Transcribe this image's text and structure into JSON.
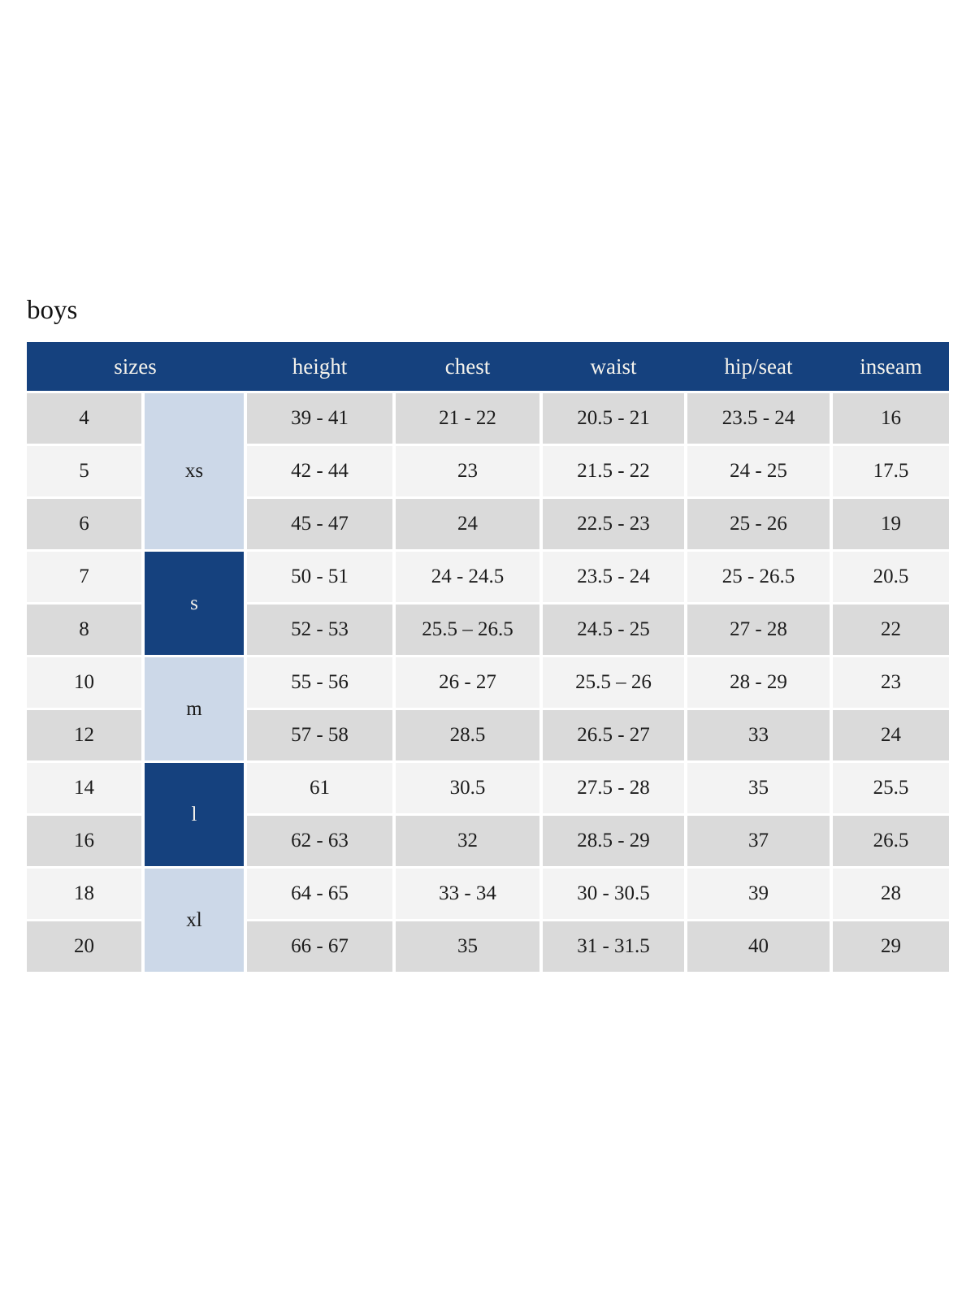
{
  "page": {
    "title": "boys"
  },
  "colors": {
    "header_bg": "#15417e",
    "header_text": "#f4f2ec",
    "group_light_bg": "#ccd8e8",
    "row_gray": "#dadada",
    "row_light": "#f3f3f3",
    "body_text": "#1c1c1c"
  },
  "chart_data": {
    "type": "table",
    "title": "boys",
    "headers": [
      "sizes",
      "height",
      "chest",
      "waist",
      "hip/seat",
      "inseam"
    ],
    "header_spans": [
      2,
      1,
      1,
      1,
      1,
      1
    ],
    "groups": [
      {
        "label": "xs",
        "span": 3,
        "variant": "light"
      },
      {
        "label": "s",
        "span": 2,
        "variant": "dark"
      },
      {
        "label": "m",
        "span": 2,
        "variant": "light"
      },
      {
        "label": "l",
        "span": 2,
        "variant": "dark"
      },
      {
        "label": "xl",
        "span": 2,
        "variant": "light"
      }
    ],
    "measure_keys": [
      "height",
      "chest",
      "waist",
      "hip_seat",
      "inseam"
    ],
    "rows": [
      {
        "size": "4",
        "height": "39 - 41",
        "chest": "21 - 22",
        "waist": "20.5 - 21",
        "hip_seat": "23.5 - 24",
        "inseam": "16"
      },
      {
        "size": "5",
        "height": "42 - 44",
        "chest": "23",
        "waist": "21.5 - 22",
        "hip_seat": "24 - 25",
        "inseam": "17.5"
      },
      {
        "size": "6",
        "height": "45 - 47",
        "chest": "24",
        "waist": "22.5 - 23",
        "hip_seat": "25 - 26",
        "inseam": "19"
      },
      {
        "size": "7",
        "height": "50 - 51",
        "chest": "24 - 24.5",
        "waist": "23.5 - 24",
        "hip_seat": "25 - 26.5",
        "inseam": "20.5"
      },
      {
        "size": "8",
        "height": "52 - 53",
        "chest": "25.5 – 26.5",
        "waist": "24.5 - 25",
        "hip_seat": "27 - 28",
        "inseam": "22"
      },
      {
        "size": "10",
        "height": "55 - 56",
        "chest": "26 - 27",
        "waist": "25.5 – 26",
        "hip_seat": "28 - 29",
        "inseam": "23"
      },
      {
        "size": "12",
        "height": "57 - 58",
        "chest": "28.5",
        "waist": "26.5 - 27",
        "hip_seat": "33",
        "inseam": "24"
      },
      {
        "size": "14",
        "height": "61",
        "chest": "30.5",
        "waist": "27.5 - 28",
        "hip_seat": "35",
        "inseam": "25.5"
      },
      {
        "size": "16",
        "height": "62 - 63",
        "chest": "32",
        "waist": "28.5 - 29",
        "hip_seat": "37",
        "inseam": "26.5"
      },
      {
        "size": "18",
        "height": "64 - 65",
        "chest": "33 - 34",
        "waist": "30 - 30.5",
        "hip_seat": "39",
        "inseam": "28"
      },
      {
        "size": "20",
        "height": "66 - 67",
        "chest": "35",
        "waist": "31 - 31.5",
        "hip_seat": "40",
        "inseam": "29"
      }
    ]
  }
}
